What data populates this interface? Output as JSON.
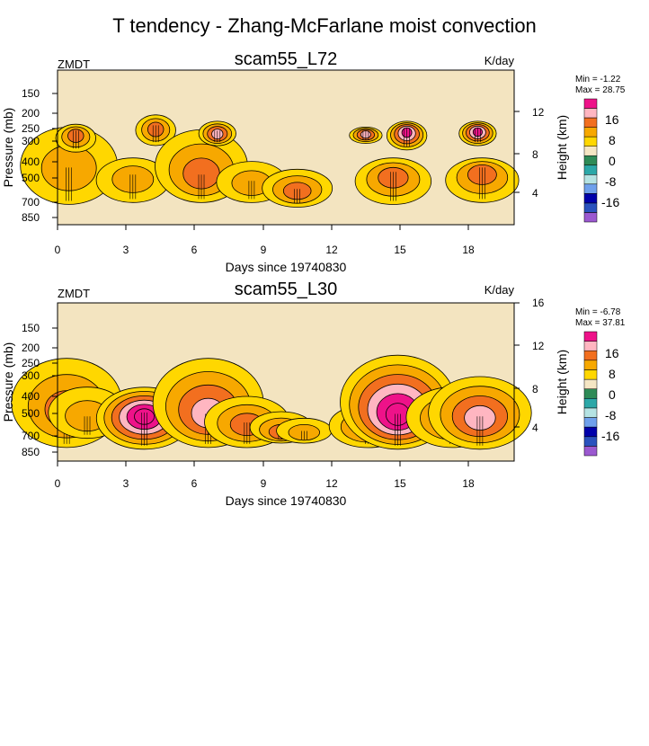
{
  "title": "T tendency - Zhang-McFarlane moist convection",
  "colors": {
    "background": "#ffffff",
    "plot_background": "#f3e4c0",
    "contour_line": "#000000",
    "levels": [
      "#9b59d0",
      "#2a52be",
      "#0000aa",
      "#6fa0ec",
      "#b5e3e3",
      "#2ca8a8",
      "#2e8b57",
      "#f5e6c4",
      "#ffd700",
      "#f7a800",
      "#f26f1f",
      "#ffb6c1",
      "#ee1289"
    ]
  },
  "colorbar_labels": [
    "16",
    "8",
    "0",
    "-8",
    "-16"
  ],
  "chart_data": [
    {
      "type": "heatmap",
      "variable": "ZMDT",
      "title": "scam55_L72",
      "units": "K/day",
      "min_label": "Min =  -1.22",
      "max_label": "Max =  28.75",
      "min": -1.22,
      "max": 28.75,
      "xlabel": "Days since 19740830",
      "ylabel": "Pressure (mb)",
      "y2label": "Height (km)",
      "xlim": [
        0,
        20
      ],
      "xticks": [
        "0",
        "3",
        "6",
        "9",
        "12",
        "15",
        "18"
      ],
      "yticks": [
        "150",
        "200",
        "250",
        "300",
        "400",
        "500",
        "700",
        "850"
      ],
      "y2ticks": [
        "12",
        "8",
        "4"
      ],
      "convective_events": [
        {
          "day": 0.5,
          "p_top": 240,
          "p_bot": 720,
          "peak": 7,
          "peak_p": 450
        },
        {
          "day": 0.8,
          "p_top": 230,
          "p_bot": 330,
          "peak": 9,
          "peak_p": 260
        },
        {
          "day": 3.3,
          "p_top": 380,
          "p_bot": 700,
          "peak": 5,
          "peak_p": 500
        },
        {
          "day": 4.3,
          "p_top": 200,
          "p_bot": 300,
          "peak": 10,
          "peak_p": 240
        },
        {
          "day": 6.3,
          "p_top": 250,
          "p_bot": 700,
          "peak": 11,
          "peak_p": 500
        },
        {
          "day": 7.0,
          "p_top": 220,
          "p_bot": 300,
          "peak": 14,
          "peak_p": 260
        },
        {
          "day": 8.5,
          "p_top": 400,
          "p_bot": 700,
          "peak": 8,
          "peak_p": 550
        },
        {
          "day": 10.5,
          "p_top": 450,
          "p_bot": 750,
          "peak": 12,
          "peak_p": 620
        },
        {
          "day": 13.5,
          "p_top": 240,
          "p_bot": 290,
          "peak": 14,
          "peak_p": 260
        },
        {
          "day": 14.7,
          "p_top": 380,
          "p_bot": 720,
          "peak": 12,
          "peak_p": 480
        },
        {
          "day": 15.3,
          "p_top": 220,
          "p_bot": 320,
          "peak": 17,
          "peak_p": 250
        },
        {
          "day": 18.4,
          "p_top": 220,
          "p_bot": 300,
          "peak": 20,
          "peak_p": 250
        },
        {
          "day": 18.6,
          "p_top": 380,
          "p_bot": 700,
          "peak": 11,
          "peak_p": 450
        }
      ]
    },
    {
      "type": "heatmap",
      "variable": "ZMDT",
      "title": "scam55_L30",
      "units": "K/day",
      "min_label": "Min =  -6.78",
      "max_label": "Max =  37.81",
      "min": -6.78,
      "max": 37.81,
      "xlabel": "Days since 19740830",
      "ylabel": "Pressure (mb)",
      "y2label": "Height (km)",
      "xlim": [
        0,
        20
      ],
      "xticks": [
        "0",
        "3",
        "6",
        "9",
        "12",
        "15",
        "18"
      ],
      "yticks": [
        "150",
        "200",
        "250",
        "300",
        "400",
        "500",
        "700",
        "850"
      ],
      "y2ticks": [
        "16",
        "12",
        "8",
        "4"
      ],
      "convective_events": [
        {
          "day": 0.4,
          "p_top": 230,
          "p_bot": 800,
          "peak": 9,
          "peak_p": 500
        },
        {
          "day": 1.3,
          "p_top": 350,
          "p_bot": 700,
          "peak": 5,
          "peak_p": 550
        },
        {
          "day": 3.8,
          "p_top": 350,
          "p_bot": 820,
          "peak": 22,
          "peak_p": 520
        },
        {
          "day": 6.6,
          "p_top": 230,
          "p_bot": 800,
          "peak": 13,
          "peak_p": 530
        },
        {
          "day": 8.3,
          "p_top": 400,
          "p_bot": 800,
          "peak": 9,
          "peak_p": 600
        },
        {
          "day": 9.8,
          "p_top": 500,
          "p_bot": 750,
          "peak": 10,
          "peak_p": 680
        },
        {
          "day": 10.8,
          "p_top": 550,
          "p_bot": 750,
          "peak": 8,
          "peak_p": 680
        },
        {
          "day": 13.6,
          "p_top": 450,
          "p_bot": 800,
          "peak": 10,
          "peak_p": 620
        },
        {
          "day": 14.9,
          "p_top": 220,
          "p_bot": 820,
          "peak": 24,
          "peak_p": 530
        },
        {
          "day": 17.3,
          "p_top": 350,
          "p_bot": 800,
          "peak": 10,
          "peak_p": 550
        },
        {
          "day": 18.5,
          "p_top": 300,
          "p_bot": 820,
          "peak": 13,
          "peak_p": 550
        }
      ]
    }
  ]
}
